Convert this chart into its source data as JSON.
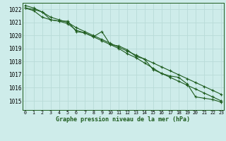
{
  "title": "Graphe pression niveau de la mer (hPa)",
  "x_labels": [
    "0",
    "1",
    "2",
    "3",
    "4",
    "5",
    "6",
    "7",
    "8",
    "9",
    "10",
    "11",
    "12",
    "13",
    "14",
    "15",
    "16",
    "17",
    "18",
    "19",
    "20",
    "21",
    "22",
    "23"
  ],
  "ylim": [
    1014.3,
    1022.5
  ],
  "yticks": [
    1015,
    1016,
    1017,
    1018,
    1019,
    1020,
    1021,
    1022
  ],
  "xlim": [
    -0.3,
    23.3
  ],
  "bg_color": "#ceecea",
  "grid_color": "#b8dbd8",
  "line_color": "#1e5c1e",
  "marker_color": "#1e5c1e",
  "series1": [
    1022.1,
    1022.0,
    1021.8,
    1021.2,
    1021.1,
    1021.1,
    1020.3,
    1020.2,
    1019.9,
    1020.3,
    1019.3,
    1019.2,
    1018.9,
    1018.4,
    1018.2,
    1017.4,
    1017.1,
    1016.9,
    1016.8,
    1016.3,
    1015.3,
    1015.2,
    1015.1,
    1014.9
  ],
  "series2": [
    1022.1,
    1021.9,
    1021.4,
    1021.2,
    1021.1,
    1020.9,
    1020.4,
    1020.2,
    1019.9,
    1019.6,
    1019.3,
    1019.0,
    1018.6,
    1018.3,
    1017.9,
    1017.5,
    1017.1,
    1016.8,
    1016.5,
    1016.2,
    1015.9,
    1015.6,
    1015.3,
    1015.0
  ],
  "series3": [
    1022.3,
    1022.1,
    1021.8,
    1021.4,
    1021.2,
    1021.0,
    1020.6,
    1020.3,
    1020.0,
    1019.7,
    1019.4,
    1019.1,
    1018.8,
    1018.5,
    1018.2,
    1017.9,
    1017.6,
    1017.3,
    1017.0,
    1016.7,
    1016.4,
    1016.1,
    1015.8,
    1015.5
  ]
}
